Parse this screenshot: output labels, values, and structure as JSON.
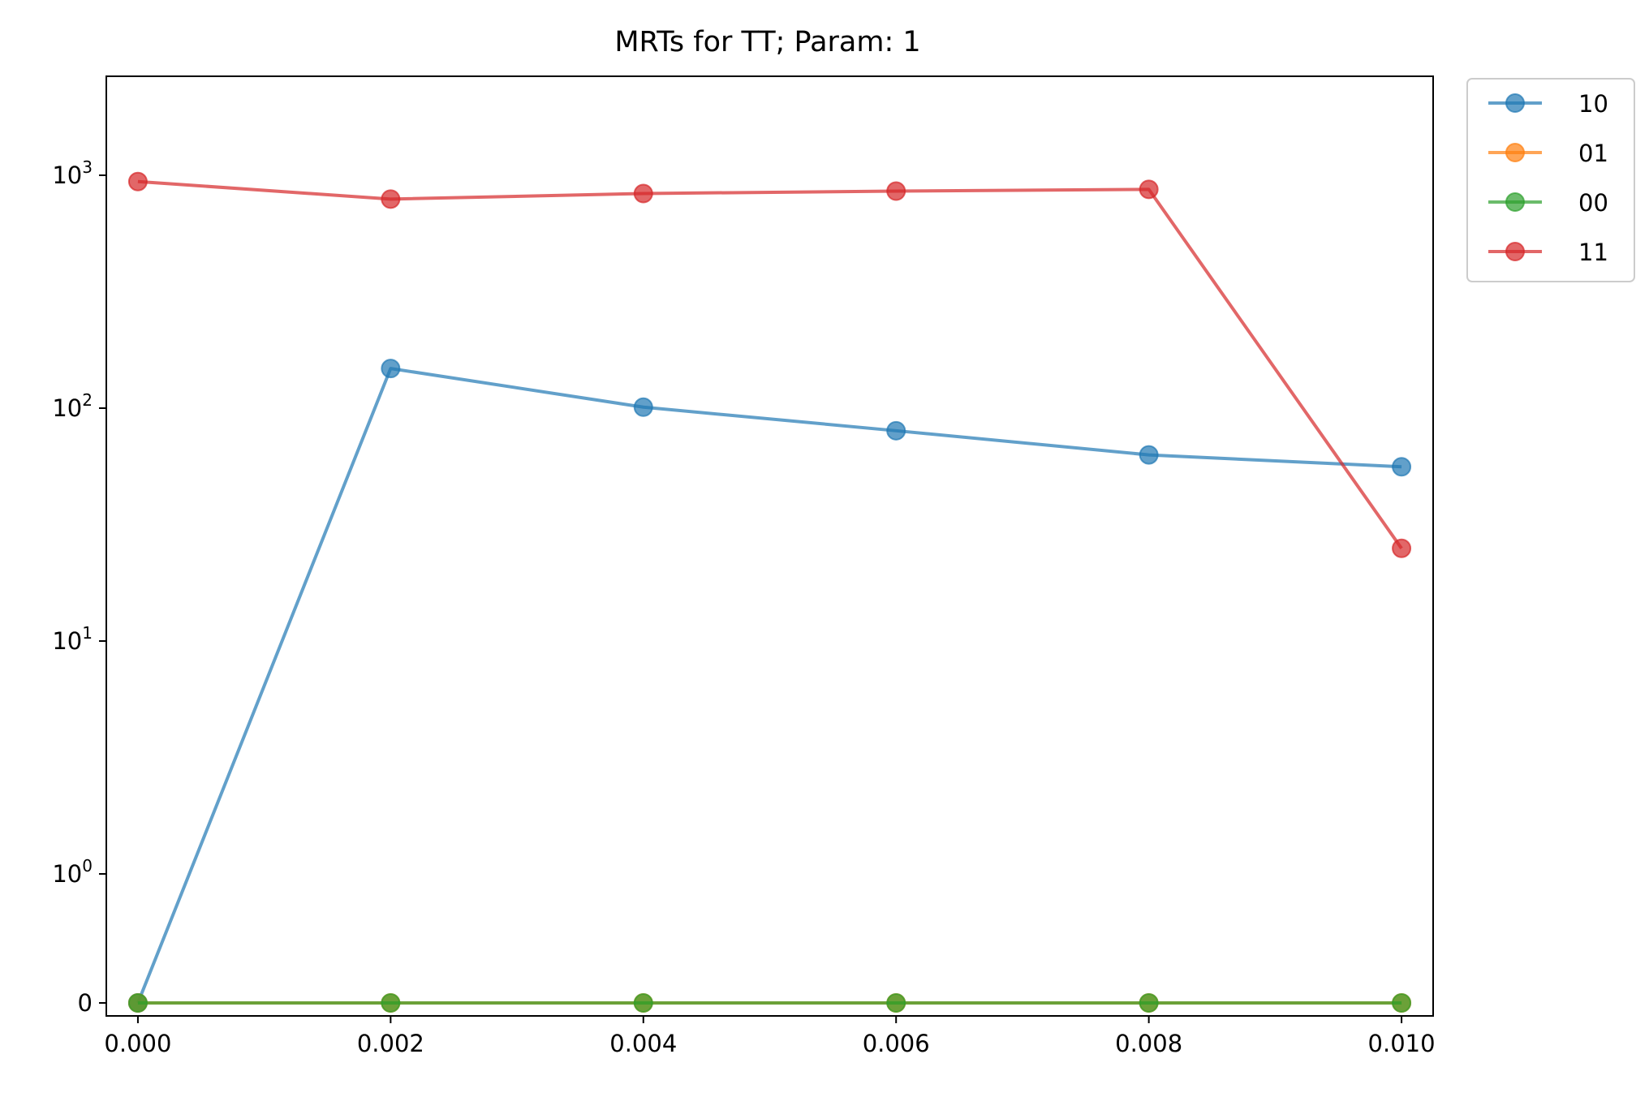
{
  "chart_data": {
    "type": "line",
    "title": "MRTs for TT; Param: 1",
    "xlabel": "",
    "ylabel": "",
    "y_scale": "symlog",
    "x": [
      0.0,
      0.002,
      0.004,
      0.006,
      0.008,
      0.01
    ],
    "xlim": [
      -0.00025,
      0.01025
    ],
    "x_tick_values": [
      0.0,
      0.002,
      0.004,
      0.006,
      0.008,
      0.01
    ],
    "x_tick_labels": [
      "0.000",
      "0.002",
      "0.004",
      "0.006",
      "0.008",
      "0.010"
    ],
    "y_ticks": [
      {
        "value": 0,
        "base": "0",
        "exp": ""
      },
      {
        "value": 1,
        "base": "10",
        "exp": "0"
      },
      {
        "value": 10,
        "base": "10",
        "exp": "1"
      },
      {
        "value": 100,
        "base": "10",
        "exp": "2"
      },
      {
        "value": 1000,
        "base": "10",
        "exp": "3"
      }
    ],
    "series": [
      {
        "name": "10",
        "color": "#1f77b4",
        "values": [
          0,
          148,
          101,
          80,
          63,
          56
        ]
      },
      {
        "name": "01",
        "color": "#ff7f0e",
        "values": [
          0,
          0,
          0,
          0,
          0,
          0
        ]
      },
      {
        "name": "00",
        "color": "#2ca02c",
        "values": [
          0,
          0,
          0,
          0,
          0,
          0
        ]
      },
      {
        "name": "11",
        "color": "#d62728",
        "values": [
          940,
          790,
          835,
          855,
          870,
          25
        ]
      }
    ],
    "legend_position": "outside-top-right",
    "grid": false
  }
}
